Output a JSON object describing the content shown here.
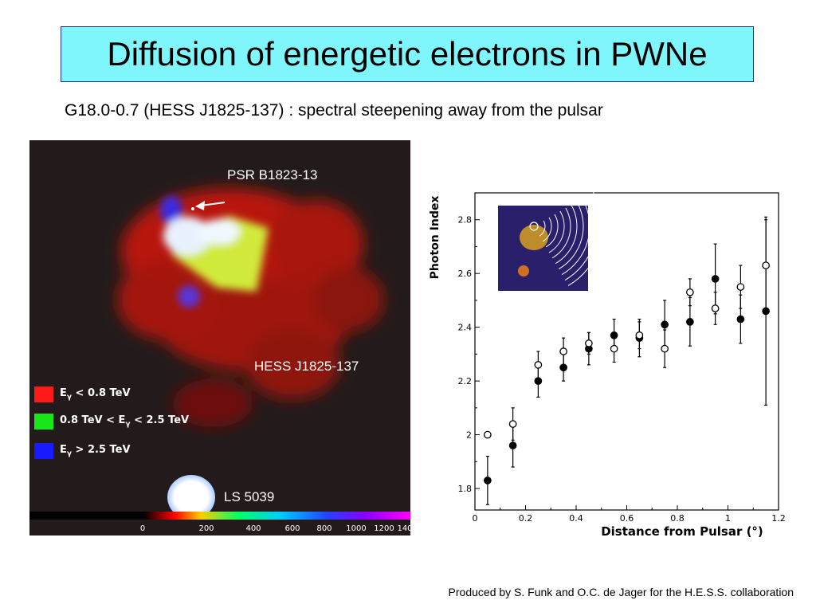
{
  "slide": {
    "title": "Diffusion of energetic electrons in PWNe",
    "subtitle": "G18.0-0.7 (HESS J1825-137) : spectral steepening away from the pulsar",
    "credit": "Produced by S. Funk and O.C. de Jager for the H.E.S.S. collaboration"
  },
  "sky_map": {
    "pulsar_label": "PSR B1823-13",
    "source_label": "HESS J1825-137",
    "companion_label": "LS 5039",
    "legend": [
      {
        "prefix": "E",
        "sub": "γ",
        "suffix": " < 0.8 TeV",
        "color": "#ff1a1a"
      },
      {
        "prefix": "0.8 TeV < E",
        "sub": "γ",
        "suffix": " < 2.5 TeV",
        "color": "#19e619"
      },
      {
        "prefix": "E",
        "sub": "γ",
        "suffix": " > 2.5 TeV",
        "color": "#1a1aff"
      }
    ],
    "scale_ticks": [
      "0",
      "200",
      "400",
      "600",
      "800",
      "1000",
      "1200",
      "140"
    ],
    "colors": {
      "red": "#c81e14",
      "yellow": "#dcef3c",
      "white": "#f4f7ff",
      "blue": "#2a2adc",
      "background": "#231b1b"
    }
  },
  "chart_data": {
    "type": "scatter",
    "xlabel": "Distance from Pulsar (°)",
    "ylabel": "Photon Index",
    "xlim": [
      0,
      1.2
    ],
    "ylim": [
      1.72,
      2.9
    ],
    "xticks": [
      "0",
      "0.2",
      "0.4",
      "0.6",
      "0.8",
      "1",
      "1.2"
    ],
    "yticks": [
      "1.8",
      "2",
      "2.2",
      "2.4",
      "2.6",
      "2.8"
    ],
    "series": [
      {
        "marker": "filled-circle",
        "x": [
          0.05,
          0.15,
          0.25,
          0.35,
          0.45,
          0.55,
          0.65,
          0.75,
          0.85,
          0.95,
          1.05,
          1.15
        ],
        "y": [
          1.83,
          1.96,
          2.2,
          2.25,
          2.32,
          2.37,
          2.36,
          2.41,
          2.42,
          2.58,
          2.43,
          2.46
        ],
        "err": [
          0.09,
          0.08,
          0.06,
          0.05,
          0.06,
          0.06,
          0.07,
          0.09,
          0.09,
          0.13,
          0.09,
          0.35
        ]
      },
      {
        "marker": "open-circle",
        "x": [
          0.05,
          0.15,
          0.25,
          0.35,
          0.45,
          0.55,
          0.65,
          0.75,
          0.85,
          0.95,
          1.05,
          1.15
        ],
        "y": [
          2.0,
          2.04,
          2.26,
          2.31,
          2.34,
          2.32,
          2.37,
          2.32,
          2.53,
          2.47,
          2.55,
          2.63
        ],
        "err": [
          0.0,
          0.06,
          0.05,
          0.05,
          0.04,
          0.05,
          0.05,
          0.07,
          0.05,
          0.06,
          0.08,
          0.17
        ]
      }
    ]
  }
}
